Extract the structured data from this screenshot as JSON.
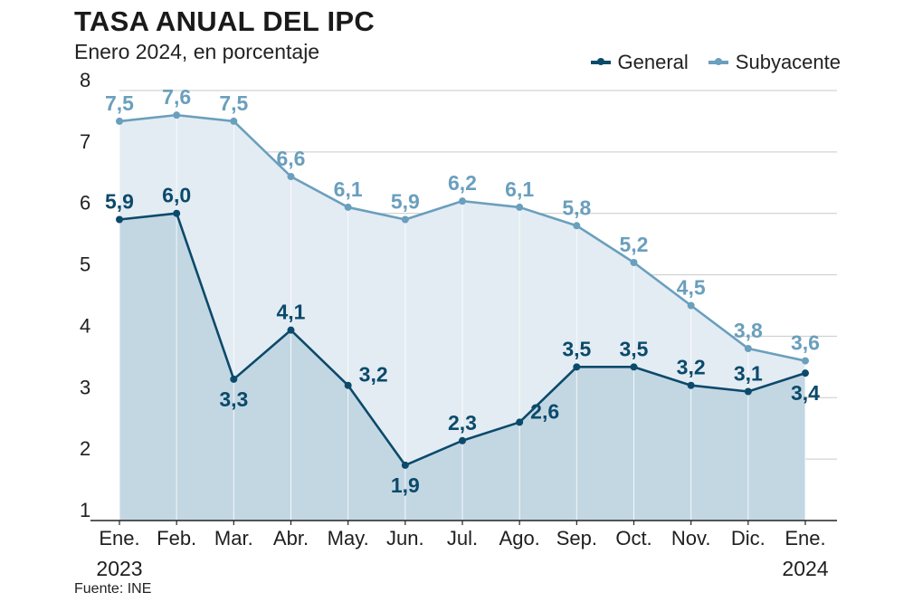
{
  "header": {
    "title": "TASA ANUAL DEL IPC",
    "subtitle": "Enero 2024, en porcentaje"
  },
  "source": "Fuente: INE",
  "colors": {
    "general": "#0b4a6b",
    "subyacente": "#6a9fbd",
    "general_fill": "#c3d7e3",
    "subyacente_fill": "#e3ecf3",
    "grid": "#c9c9c9",
    "axis": "#222222"
  },
  "chart_data": {
    "type": "area",
    "title": "TASA ANUAL DEL IPC",
    "subtitle": "Enero 2024, en porcentaje",
    "categories": [
      "Ene.",
      "Feb.",
      "Mar.",
      "Abr.",
      "May.",
      "Jun.",
      "Jul.",
      "Ago.",
      "Sep.",
      "Oct.",
      "Nov.",
      "Dic.",
      "Ene."
    ],
    "year_labels": [
      {
        "index": 0,
        "label": "2023"
      },
      {
        "index": 12,
        "label": "2024"
      }
    ],
    "ylim": [
      1,
      8
    ],
    "yticks": [
      1,
      2,
      3,
      4,
      5,
      6,
      7,
      8
    ],
    "grid": true,
    "legend_position": "top-right",
    "series": [
      {
        "name": "General",
        "values": [
          5.9,
          6.0,
          3.3,
          4.1,
          3.2,
          1.9,
          2.3,
          2.6,
          3.5,
          3.5,
          3.2,
          3.1,
          3.4
        ],
        "labels": [
          "5,9",
          "6,0",
          "3,3",
          "4,1",
          "3,2",
          "1,9",
          "2,3",
          "2,6",
          "3,5",
          "3,5",
          "3,2",
          "3,1",
          "3,4"
        ],
        "label_positions": [
          "above",
          "above",
          "below",
          "above",
          "right",
          "below",
          "above",
          "right",
          "above",
          "above",
          "above",
          "above",
          "below"
        ]
      },
      {
        "name": "Subyacente",
        "values": [
          7.5,
          7.6,
          7.5,
          6.6,
          6.1,
          5.9,
          6.2,
          6.1,
          5.8,
          5.2,
          4.5,
          3.8,
          3.6
        ],
        "labels": [
          "7,5",
          "7,6",
          "7,5",
          "6,6",
          "6,1",
          "5,9",
          "6,2",
          "6,1",
          "5,8",
          "5,2",
          "4,5",
          "3,8",
          "3,6"
        ],
        "label_positions": [
          "above",
          "above",
          "above",
          "above",
          "above",
          "above",
          "above",
          "above",
          "above",
          "above",
          "above",
          "above",
          "above"
        ]
      }
    ]
  }
}
